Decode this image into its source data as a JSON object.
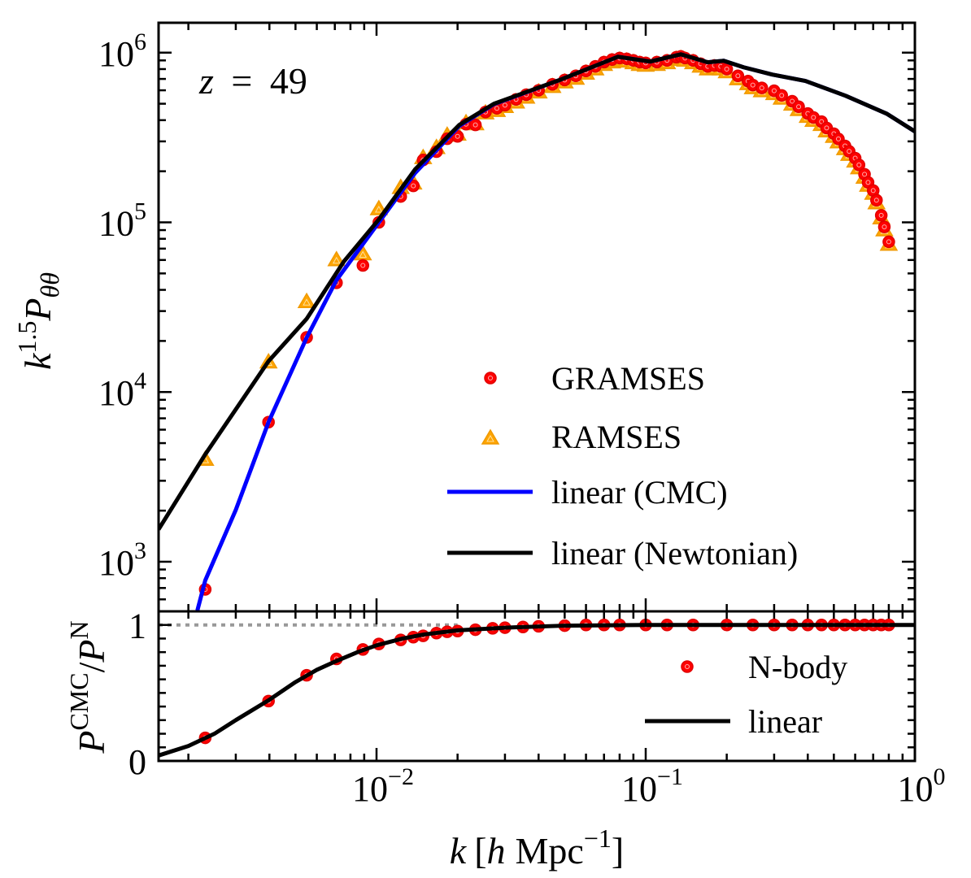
{
  "chart_data": [
    {
      "type": "scatter",
      "panel": "top",
      "annotation": {
        "var": "z",
        "eq": "=",
        "val": "49"
      },
      "ylabel": {
        "base": "k",
        "sup": "1.5",
        "base2": "P",
        "sub": "θθ"
      },
      "xscale": "log",
      "yscale": "log",
      "xlim": [
        0.00155,
        1.0
      ],
      "ylim": [
        510,
        1500000
      ],
      "yticks": [
        {
          "base": "10",
          "exp": "3",
          "value": 1000
        },
        {
          "base": "10",
          "exp": "4",
          "value": 10000
        },
        {
          "base": "10",
          "exp": "5",
          "value": 100000
        },
        {
          "base": "10",
          "exp": "6",
          "value": 1000000
        }
      ],
      "legend_position": "center-right",
      "colors": {
        "gramses": "#ff0000",
        "ramses": "#ffa500",
        "cmc": "#0000ff",
        "newtonian": "#000000"
      },
      "series": [
        {
          "name": "GRAMSES",
          "kind": "points",
          "k": [
            0.00231,
            0.00397,
            0.0055,
            0.0071,
            0.0089,
            0.0102,
            0.0123,
            0.0137,
            0.0149,
            0.0167,
            0.0183,
            0.02,
            0.0215,
            0.0233,
            0.0254,
            0.028,
            0.03,
            0.033,
            0.036,
            0.04,
            0.045,
            0.05,
            0.055,
            0.06,
            0.065,
            0.07,
            0.075,
            0.08,
            0.085,
            0.09,
            0.095,
            0.1,
            0.11,
            0.12,
            0.13,
            0.135,
            0.14,
            0.15,
            0.16,
            0.17,
            0.18,
            0.19,
            0.2,
            0.22,
            0.24,
            0.25,
            0.27,
            0.3,
            0.32,
            0.35,
            0.37,
            0.4,
            0.42,
            0.45,
            0.47,
            0.5,
            0.52,
            0.55,
            0.57,
            0.6,
            0.62,
            0.65,
            0.67,
            0.7,
            0.72,
            0.75,
            0.77,
            0.8
          ],
          "values": [
            687,
            6650,
            21000,
            44000,
            55700,
            100000,
            142000,
            164000,
            233000,
            261000,
            311000,
            321000,
            379000,
            375000,
            447000,
            470000,
            490000,
            530000,
            565000,
            600000,
            650000,
            690000,
            730000,
            780000,
            830000,
            880000,
            910000,
            930000,
            920000,
            900000,
            880000,
            870000,
            880000,
            900000,
            940000,
            950000,
            930000,
            900000,
            860000,
            830000,
            840000,
            830000,
            800000,
            730000,
            680000,
            644000,
            620000,
            596000,
            560000,
            517000,
            480000,
            438000,
            415000,
            392000,
            360000,
            333000,
            310000,
            282000,
            262000,
            239000,
            218000,
            192000,
            172000,
            154000,
            135000,
            110000,
            94000,
            76800
          ]
        },
        {
          "name": "RAMSES",
          "kind": "points",
          "k": [
            0.00231,
            0.00397,
            0.0055,
            0.0071,
            0.0089,
            0.0102,
            0.0123,
            0.0137,
            0.0149,
            0.0167,
            0.0183,
            0.02,
            0.0215,
            0.0233,
            0.0254,
            0.028,
            0.03,
            0.033,
            0.036,
            0.04,
            0.045,
            0.05,
            0.055,
            0.06,
            0.065,
            0.07,
            0.075,
            0.08,
            0.085,
            0.09,
            0.095,
            0.1,
            0.11,
            0.12,
            0.13,
            0.135,
            0.14,
            0.15,
            0.16,
            0.17,
            0.18,
            0.19,
            0.2,
            0.22,
            0.24,
            0.25,
            0.27,
            0.3,
            0.32,
            0.35,
            0.37,
            0.4,
            0.42,
            0.45,
            0.47,
            0.5,
            0.52,
            0.55,
            0.57,
            0.6,
            0.62,
            0.65,
            0.67,
            0.7,
            0.72,
            0.75,
            0.77,
            0.8
          ],
          "values": [
            4000,
            15000,
            34000,
            60000,
            65000,
            120000,
            160000,
            170000,
            240000,
            275000,
            325000,
            330000,
            385000,
            380000,
            440000,
            455000,
            480000,
            510000,
            545000,
            585000,
            630000,
            670000,
            705000,
            755000,
            800000,
            850000,
            880000,
            900000,
            890000,
            870000,
            850000,
            840000,
            850000,
            870000,
            910000,
            920000,
            900000,
            870000,
            830000,
            800000,
            810000,
            800000,
            770000,
            700000,
            655000,
            620000,
            595000,
            572000,
            538000,
            496000,
            461000,
            420000,
            398000,
            376000,
            345000,
            320000,
            297000,
            271000,
            251000,
            229000,
            209000,
            184000,
            165000,
            148000,
            130000,
            106000,
            90000,
            74000
          ]
        },
        {
          "name": "linear (CMC)",
          "kind": "line",
          "k": [
            0.00216,
            0.00231,
            0.003,
            0.00397,
            0.0055,
            0.0071,
            0.0102,
            0.0139,
            0.0203,
            0.0273,
            0.0485,
            0.0789,
            0.104,
            0.135,
            0.17,
            0.195,
            0.231,
            0.295,
            0.392,
            0.553,
            0.785,
            1.0
          ],
          "values": [
            516,
            776,
            2020,
            6650,
            20900,
            45700,
            100000,
            195000,
            370000,
            497000,
            695000,
            946000,
            886000,
            978000,
            877000,
            896000,
            820000,
            743000,
            681000,
            557000,
            437000,
            343000
          ]
        },
        {
          "name": "linear (Newtonian)",
          "kind": "line",
          "k": [
            0.00155,
            0.00231,
            0.00397,
            0.0055,
            0.00757,
            0.0102,
            0.0139,
            0.0203,
            0.0273,
            0.0485,
            0.0789,
            0.104,
            0.135,
            0.17,
            0.195,
            0.231,
            0.295,
            0.392,
            0.553,
            0.785,
            1.0
          ],
          "values": [
            1550,
            4290,
            15200,
            27000,
            58900,
            104000,
            205000,
            375000,
            500000,
            695000,
            946000,
            886000,
            978000,
            877000,
            896000,
            820000,
            743000,
            681000,
            557000,
            437000,
            343000
          ]
        }
      ]
    },
    {
      "type": "scatter",
      "panel": "bottom",
      "ylabel": {
        "base": "P",
        "sup": "CMC",
        "slash": "/",
        "base2": "P",
        "sup2": "N"
      },
      "xlabel": {
        "var": "k",
        "open": "[",
        "h": "h",
        "unit": "Mpc",
        "exp": "−1",
        "close": "]"
      },
      "xscale": "log",
      "xlim": [
        0.00155,
        1.0
      ],
      "ylim": [
        0,
        1.1
      ],
      "xticks": [
        {
          "base": "10",
          "exp": "−2",
          "value": 0.01
        },
        {
          "base": "10",
          "exp": "−1",
          "value": 0.1
        },
        {
          "base": "10",
          "exp": "0",
          "value": 1
        }
      ],
      "yticks": [
        {
          "label": "0",
          "value": 0
        },
        {
          "label": "1",
          "value": 1
        }
      ],
      "reference_line": {
        "value": 1,
        "style": "dotted",
        "color": "#999999",
        "k_range": [
          0.00155,
          0.02
        ]
      },
      "legend_position": "center-right",
      "series": [
        {
          "name": "N-body",
          "kind": "points",
          "k": [
            0.00231,
            0.00397,
            0.0055,
            0.0071,
            0.0089,
            0.0102,
            0.0123,
            0.0137,
            0.0149,
            0.0167,
            0.0183,
            0.02,
            0.0233,
            0.027,
            0.03,
            0.035,
            0.04,
            0.05,
            0.06,
            0.07,
            0.08,
            0.1,
            0.12,
            0.15,
            0.2,
            0.25,
            0.3,
            0.35,
            0.4,
            0.45,
            0.5,
            0.55,
            0.6,
            0.65,
            0.7,
            0.75,
            0.8
          ],
          "values": [
            0.17,
            0.44,
            0.63,
            0.75,
            0.82,
            0.86,
            0.89,
            0.91,
            0.92,
            0.94,
            0.95,
            0.955,
            0.965,
            0.975,
            0.98,
            0.985,
            0.99,
            0.995,
            1.0,
            1.0,
            1.0,
            1.0,
            1.0,
            1.0,
            1.0,
            1.0,
            1.0,
            1.0,
            1.0,
            1.0,
            1.0,
            1.0,
            1.0,
            1.0,
            1.0,
            1.0,
            1.0
          ]
        },
        {
          "name": "linear",
          "kind": "line",
          "k": [
            0.00155,
            0.002,
            0.0025,
            0.003,
            0.004,
            0.005,
            0.006,
            0.007,
            0.0085,
            0.01,
            0.0125,
            0.015,
            0.02,
            0.03,
            0.05,
            0.1,
            1.0
          ],
          "values": [
            0.04,
            0.11,
            0.2,
            0.3,
            0.45,
            0.58,
            0.67,
            0.73,
            0.8,
            0.85,
            0.9,
            0.93,
            0.96,
            0.98,
            0.995,
            1.0,
            1.0
          ]
        }
      ]
    }
  ]
}
